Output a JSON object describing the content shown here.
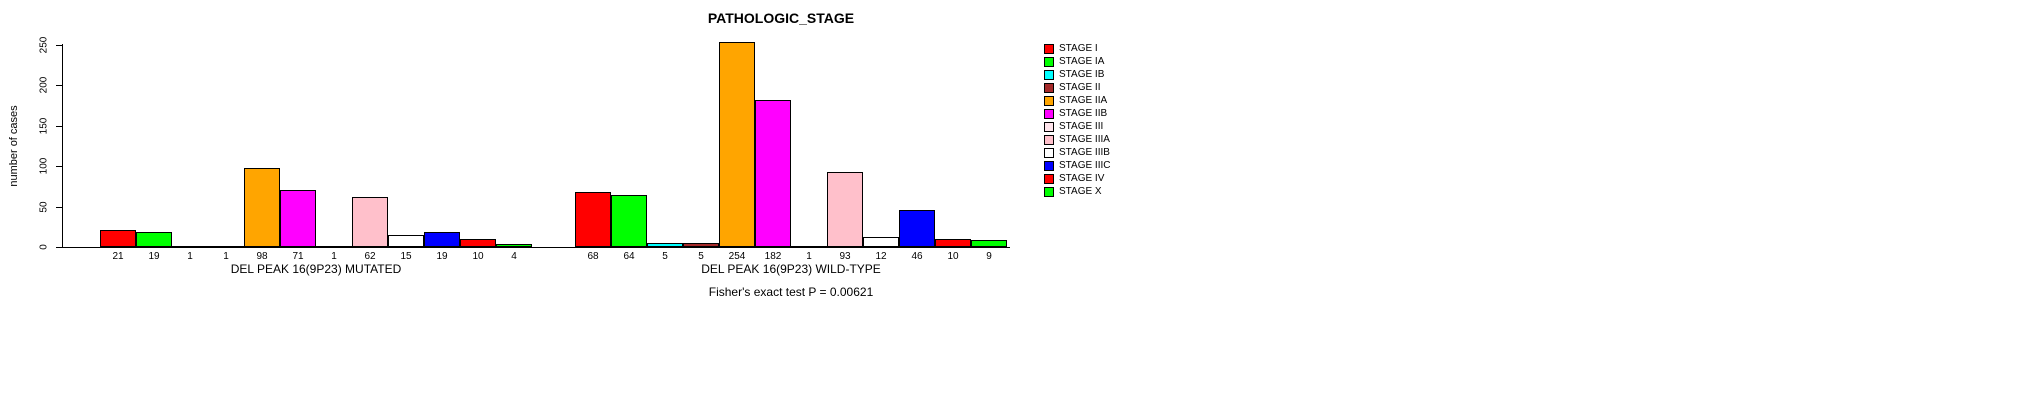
{
  "chart_data": {
    "type": "bar",
    "title": "PATHOLOGIC_STAGE",
    "ylabel": "number of cases",
    "footer": "Fisher's exact test P = 0.00621",
    "ylim": [
      0,
      250
    ],
    "yticks": [
      0,
      50,
      100,
      150,
      200,
      250
    ],
    "grid": false,
    "legend_position": "right",
    "stages": [
      {
        "label": "STAGE I",
        "color": "#FF0000"
      },
      {
        "label": "STAGE IA",
        "color": "#00FF00"
      },
      {
        "label": "STAGE IB",
        "color": "#00FFFF"
      },
      {
        "label": "STAGE II",
        "color": "#A52A2A"
      },
      {
        "label": "STAGE IIA",
        "color": "#FFA500"
      },
      {
        "label": "STAGE IIB",
        "color": "#FF00FF"
      },
      {
        "label": "STAGE III",
        "color": "#FFE4EC"
      },
      {
        "label": "STAGE IIIA",
        "color": "#FFC0CB"
      },
      {
        "label": "STAGE IIIB",
        "color": "#FFFFFF"
      },
      {
        "label": "STAGE IIIC",
        "color": "#0000FF"
      },
      {
        "label": "STAGE IV",
        "color": "#FF0000"
      },
      {
        "label": "STAGE X",
        "color": "#00FF00"
      }
    ],
    "groups": [
      {
        "label": "DEL PEAK 16(9P23) MUTATED",
        "values": [
          21,
          19,
          1,
          1,
          98,
          71,
          1,
          62,
          15,
          19,
          10,
          4
        ]
      },
      {
        "label": "DEL PEAK 16(9P23) WILD-TYPE",
        "values": [
          68,
          64,
          5,
          5,
          254,
          182,
          1,
          93,
          12,
          46,
          10,
          9
        ]
      }
    ]
  }
}
